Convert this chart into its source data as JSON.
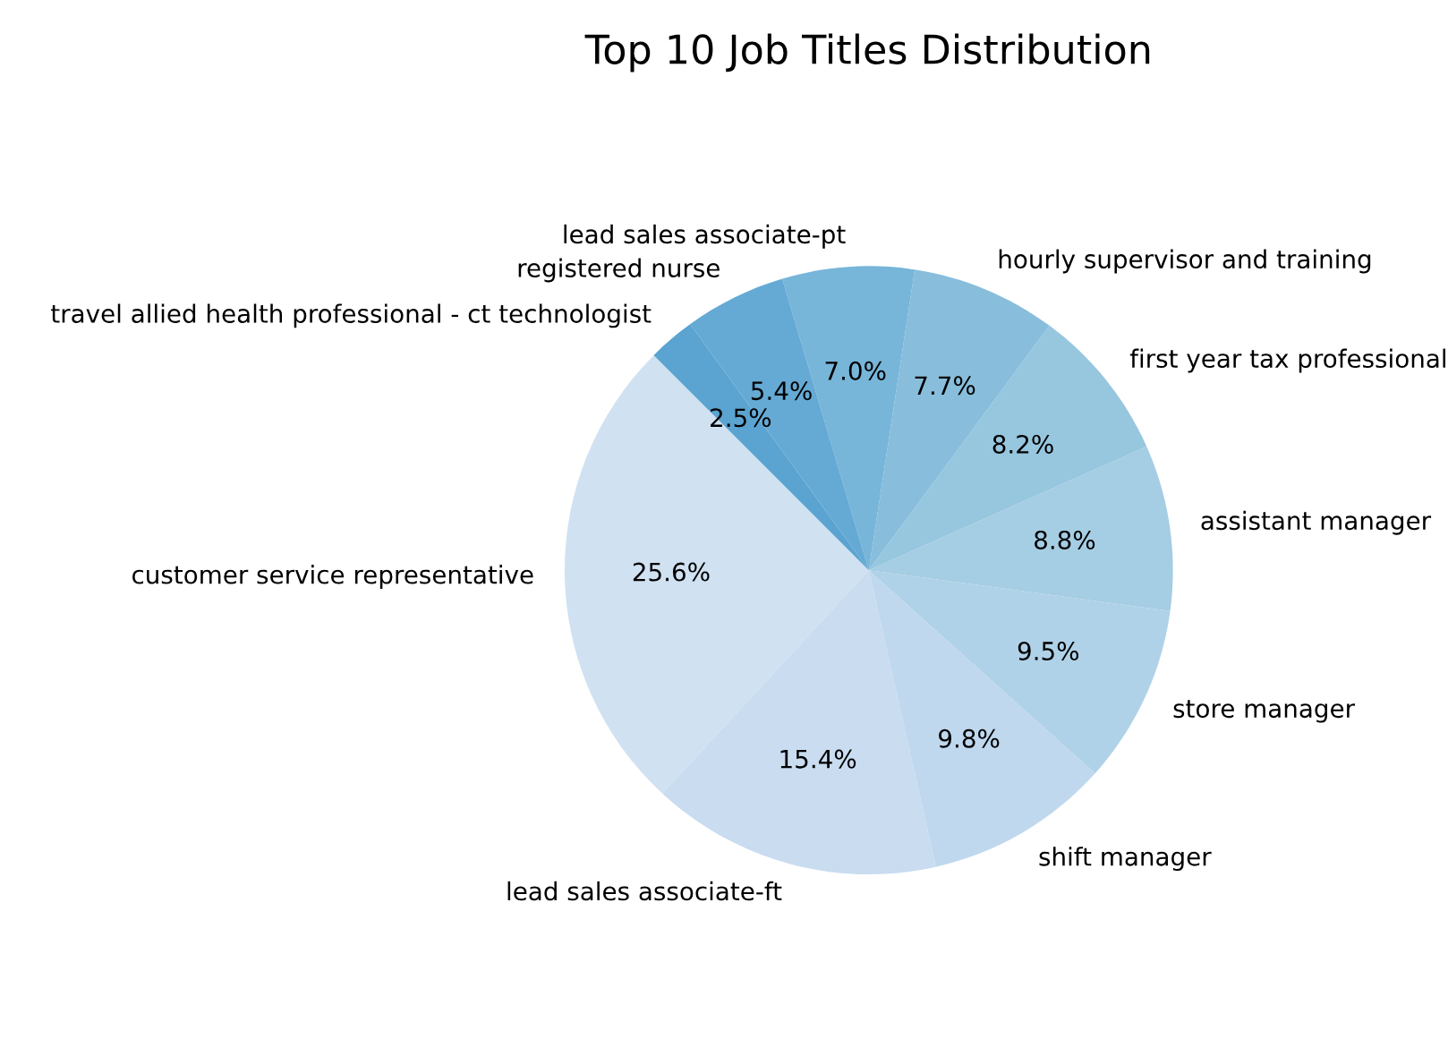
{
  "chart_data": {
    "type": "pie",
    "title": "Top 10 Job Titles Distribution",
    "categories": [
      "customer service representative",
      "lead sales associate-ft",
      "shift manager",
      "store manager",
      "assistant manager",
      "first year tax professional",
      "hourly supervisor and training",
      "lead sales associate-pt",
      "registered nurse",
      "travel allied health professional - ct technologist"
    ],
    "values": [
      25.6,
      15.4,
      9.8,
      9.5,
      8.8,
      8.2,
      7.7,
      7.0,
      5.4,
      2.5
    ],
    "value_labels": [
      "25.6%",
      "15.4%",
      "9.8%",
      "9.5%",
      "8.8%",
      "8.2%",
      "7.7%",
      "7.0%",
      "5.4%",
      "2.5%"
    ],
    "colors": [
      "#d0e1f2",
      "#c9dcf0",
      "#bfd8ee",
      "#b0d2e8",
      "#a5cde3",
      "#97c6df",
      "#88bedc",
      "#77b5d9",
      "#65aad4",
      "#5ba3d0"
    ]
  }
}
